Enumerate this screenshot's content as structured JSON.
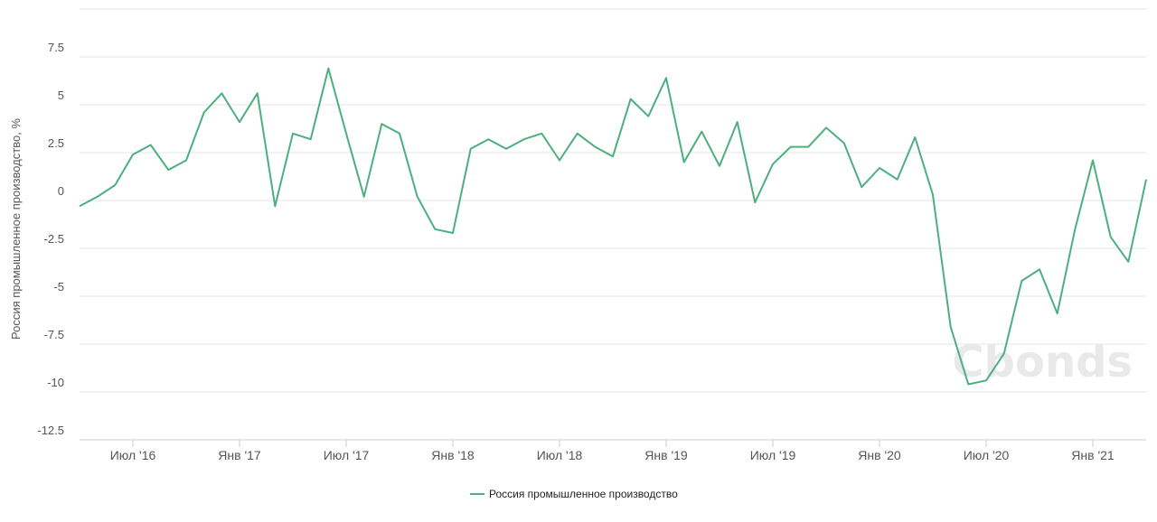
{
  "chart_data": {
    "type": "line",
    "ylabel": "Россия промышленное производство, %",
    "ylim": [
      -12.5,
      10
    ],
    "yticks": [
      {
        "value": 7.5,
        "label": "7.5"
      },
      {
        "value": 5,
        "label": "5"
      },
      {
        "value": 2.5,
        "label": "2.5"
      },
      {
        "value": 0,
        "label": "0"
      },
      {
        "value": -2.5,
        "label": "-2.5"
      },
      {
        "value": -5,
        "label": "-5"
      },
      {
        "value": -7.5,
        "label": "-7.5"
      },
      {
        "value": -10,
        "label": "-10"
      },
      {
        "value": -12.5,
        "label": "-12.5"
      }
    ],
    "xticks": [
      {
        "index": 3,
        "label": "Июл '16"
      },
      {
        "index": 9,
        "label": "Янв '17"
      },
      {
        "index": 15,
        "label": "Июл '17"
      },
      {
        "index": 21,
        "label": "Янв '18"
      },
      {
        "index": 27,
        "label": "Июл '18"
      },
      {
        "index": 33,
        "label": "Янв '19"
      },
      {
        "index": 39,
        "label": "Июл '19"
      },
      {
        "index": 45,
        "label": "Янв '20"
      },
      {
        "index": 51,
        "label": "Июл '20"
      },
      {
        "index": 57,
        "label": "Янв '21"
      }
    ],
    "x": [
      "2016-04",
      "2016-05",
      "2016-06",
      "2016-07",
      "2016-08",
      "2016-09",
      "2016-10",
      "2016-11",
      "2016-12",
      "2017-01",
      "2017-02",
      "2017-03",
      "2017-04",
      "2017-05",
      "2017-06",
      "2017-07",
      "2017-08",
      "2017-09",
      "2017-10",
      "2017-11",
      "2017-12",
      "2018-01",
      "2018-02",
      "2018-03",
      "2018-04",
      "2018-05",
      "2018-06",
      "2018-07",
      "2018-08",
      "2018-09",
      "2018-10",
      "2018-11",
      "2018-12",
      "2019-01",
      "2019-02",
      "2019-03",
      "2019-04",
      "2019-05",
      "2019-06",
      "2019-07",
      "2019-08",
      "2019-09",
      "2019-10",
      "2019-11",
      "2019-12",
      "2020-01",
      "2020-02",
      "2020-03",
      "2020-04",
      "2020-05",
      "2020-06",
      "2020-07",
      "2020-08",
      "2020-09",
      "2020-10",
      "2020-11",
      "2020-12",
      "2021-01",
      "2021-02",
      "2021-03",
      "2021-04"
    ],
    "series": [
      {
        "name": "Россия промышленное производство",
        "color": "#4caf7d",
        "values": [
          -0.3,
          0.2,
          0.8,
          2.4,
          2.9,
          1.6,
          2.1,
          4.6,
          5.6,
          4.1,
          5.6,
          -0.3,
          3.5,
          3.2,
          6.9,
          3.5,
          0.2,
          4.0,
          3.5,
          0.2,
          -1.5,
          -1.7,
          2.7,
          3.2,
          2.7,
          3.2,
          3.5,
          2.1,
          3.5,
          2.8,
          2.3,
          5.3,
          4.4,
          6.4,
          2.0,
          3.6,
          1.8,
          4.1,
          -0.1,
          1.9,
          2.8,
          2.8,
          3.8,
          3.0,
          0.7,
          1.7,
          1.1,
          3.3,
          0.3,
          -6.6,
          -9.6,
          -9.4,
          -8.0,
          -4.2,
          -3.6,
          -5.9,
          -1.5,
          2.1,
          -1.9,
          -3.2,
          1.1
        ]
      }
    ],
    "grid": true,
    "legend": "bottom-center",
    "watermark": "Cbonds"
  }
}
